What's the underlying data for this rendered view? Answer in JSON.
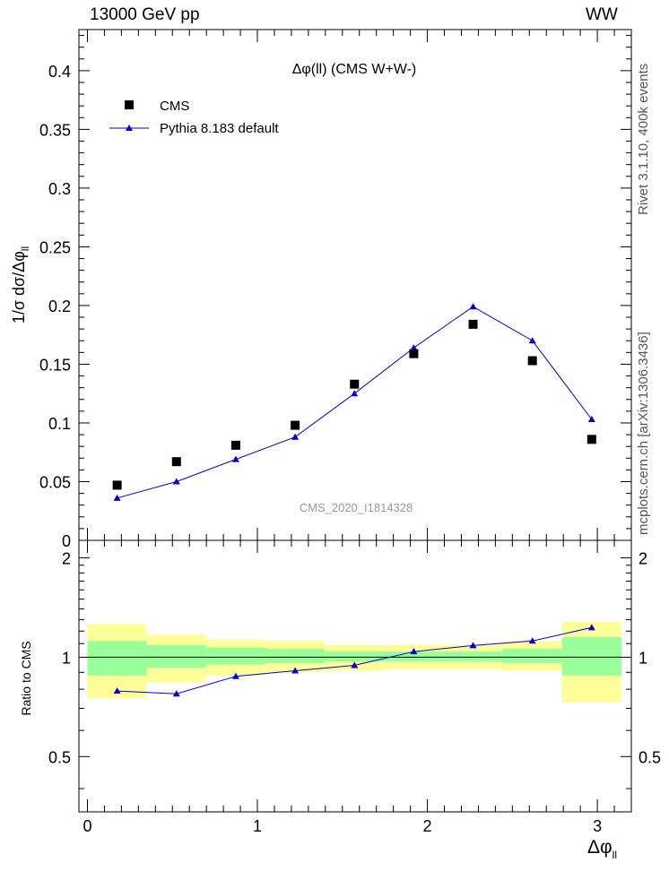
{
  "header": {
    "energy": "13000 GeV pp",
    "process": "WW"
  },
  "side_labels": {
    "rivet": "Rivet 3.1.10,  400k events",
    "mcplots": "mcplots.cern.ch [arXiv:1306.3436]"
  },
  "colors": {
    "mc_line": "#0000cc",
    "band_inner": "#99ff99",
    "band_outer": "#ffff99",
    "watermark": "#999999"
  },
  "chart_data": [
    {
      "type": "scatter",
      "title": "Δφ(ll) (CMS W+W-)",
      "watermark": "CMS_2020_I1814328",
      "xlabel": "Δφ",
      "xlabel_sub": "ll",
      "ylabel": "1/σ dσ/Δφ",
      "ylabel_sub": "ll",
      "xlim": [
        -0.05,
        3.2
      ],
      "ylim": [
        0,
        0.435
      ],
      "x_ticks": [
        "0",
        "1",
        "2",
        "3"
      ],
      "y_ticks": [
        "0",
        "0.05",
        "0.1",
        "0.15",
        "0.2",
        "0.25",
        "0.3",
        "0.35",
        "0.4"
      ],
      "legend": {
        "position": "top-left",
        "entries": [
          "CMS",
          "Pythia 8.183 default"
        ]
      },
      "x": [
        0.175,
        0.524,
        0.873,
        1.222,
        1.571,
        1.92,
        2.269,
        2.618,
        2.967
      ],
      "series": [
        {
          "name": "CMS",
          "marker": "square",
          "values": [
            0.047,
            0.067,
            0.081,
            0.098,
            0.133,
            0.159,
            0.184,
            0.153,
            0.086
          ]
        },
        {
          "name": "Pythia 8.183 default",
          "marker": "triangle",
          "values": [
            0.036,
            0.05,
            0.069,
            0.088,
            0.125,
            0.164,
            0.199,
            0.17,
            0.103
          ]
        }
      ]
    },
    {
      "type": "line",
      "ylabel": "Ratio to CMS",
      "xlim": [
        -0.05,
        3.2
      ],
      "ylim": [
        0.34,
        2.26
      ],
      "y_ticks": [
        "0.5",
        "1",
        "2"
      ],
      "bin_edges": [
        0,
        0.349,
        0.698,
        1.047,
        1.396,
        1.745,
        2.094,
        2.443,
        2.793,
        3.142
      ],
      "band_inner": [
        [
          0.88,
          1.12
        ],
        [
          0.93,
          1.09
        ],
        [
          0.95,
          1.07
        ],
        [
          0.96,
          1.06
        ],
        [
          0.97,
          1.04
        ],
        [
          0.97,
          1.04
        ],
        [
          0.97,
          1.04
        ],
        [
          0.96,
          1.06
        ],
        [
          0.88,
          1.15
        ]
      ],
      "band_outer": [
        [
          0.75,
          1.26
        ],
        [
          0.84,
          1.17
        ],
        [
          0.88,
          1.13
        ],
        [
          0.9,
          1.12
        ],
        [
          0.91,
          1.09
        ],
        [
          0.92,
          1.09
        ],
        [
          0.92,
          1.09
        ],
        [
          0.91,
          1.12
        ],
        [
          0.73,
          1.28
        ]
      ],
      "series": [
        {
          "name": "Pythia 8.183 default",
          "values": [
            0.79,
            0.775,
            0.875,
            0.91,
            0.945,
            1.04,
            1.085,
            1.12,
            1.23
          ]
        }
      ]
    }
  ]
}
